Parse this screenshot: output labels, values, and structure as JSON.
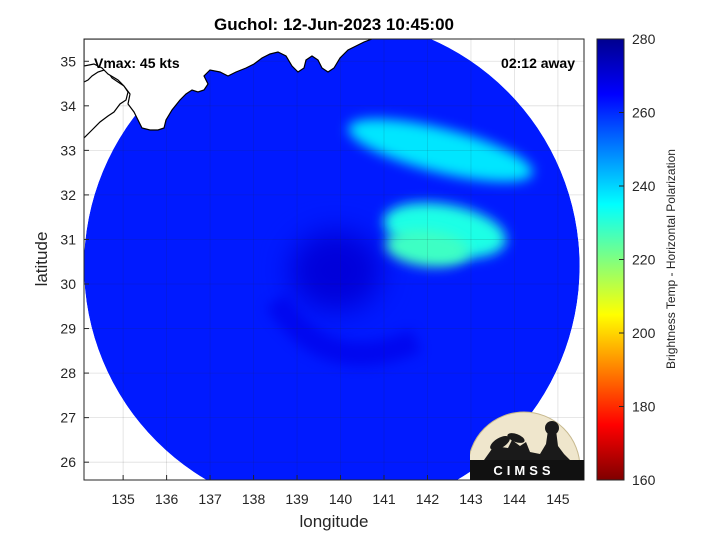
{
  "chart_data": {
    "type": "heatmap",
    "title": "Guchol: 12-Jun-2023 10:45:00",
    "xlabel": "longitude",
    "ylabel": "latitude",
    "xlim": [
      134.1,
      145.6
    ],
    "ylim": [
      25.6,
      35.5
    ],
    "xticks": [
      135,
      136,
      137,
      138,
      139,
      140,
      141,
      142,
      143,
      144,
      145
    ],
    "yticks": [
      26,
      27,
      28,
      29,
      30,
      31,
      32,
      33,
      34,
      35
    ],
    "grid": true,
    "annotations": {
      "vmax": "Vmax: 45 kts",
      "away": "02:12 away"
    },
    "colorbar": {
      "label": "Brightness Temp - Horizontal Polarization",
      "min": 160,
      "max": 280,
      "ticks": [
        160,
        180,
        200,
        220,
        240,
        260,
        280
      ],
      "colormap": [
        "#7f0000",
        "#ff0000",
        "#ff8000",
        "#ffff00",
        "#80ff80",
        "#00ffff",
        "#0080ff",
        "#0000ff",
        "#00008f"
      ]
    },
    "swath": {
      "center": [
        139.8,
        30.4
      ],
      "radius_deg": 5.7,
      "background_value": 262
    },
    "features": [
      {
        "name": "eye",
        "center": [
          139.9,
          30.3
        ],
        "value": 270
      },
      {
        "name": "cold-band-north",
        "center": [
          142.3,
          33.0
        ],
        "value": 238
      },
      {
        "name": "cold-band-east",
        "center": [
          142.4,
          31.2
        ],
        "value": 232
      },
      {
        "name": "cold-band-core",
        "center": [
          142.0,
          30.8
        ],
        "value": 228
      }
    ],
    "logo": "CIMSS"
  }
}
